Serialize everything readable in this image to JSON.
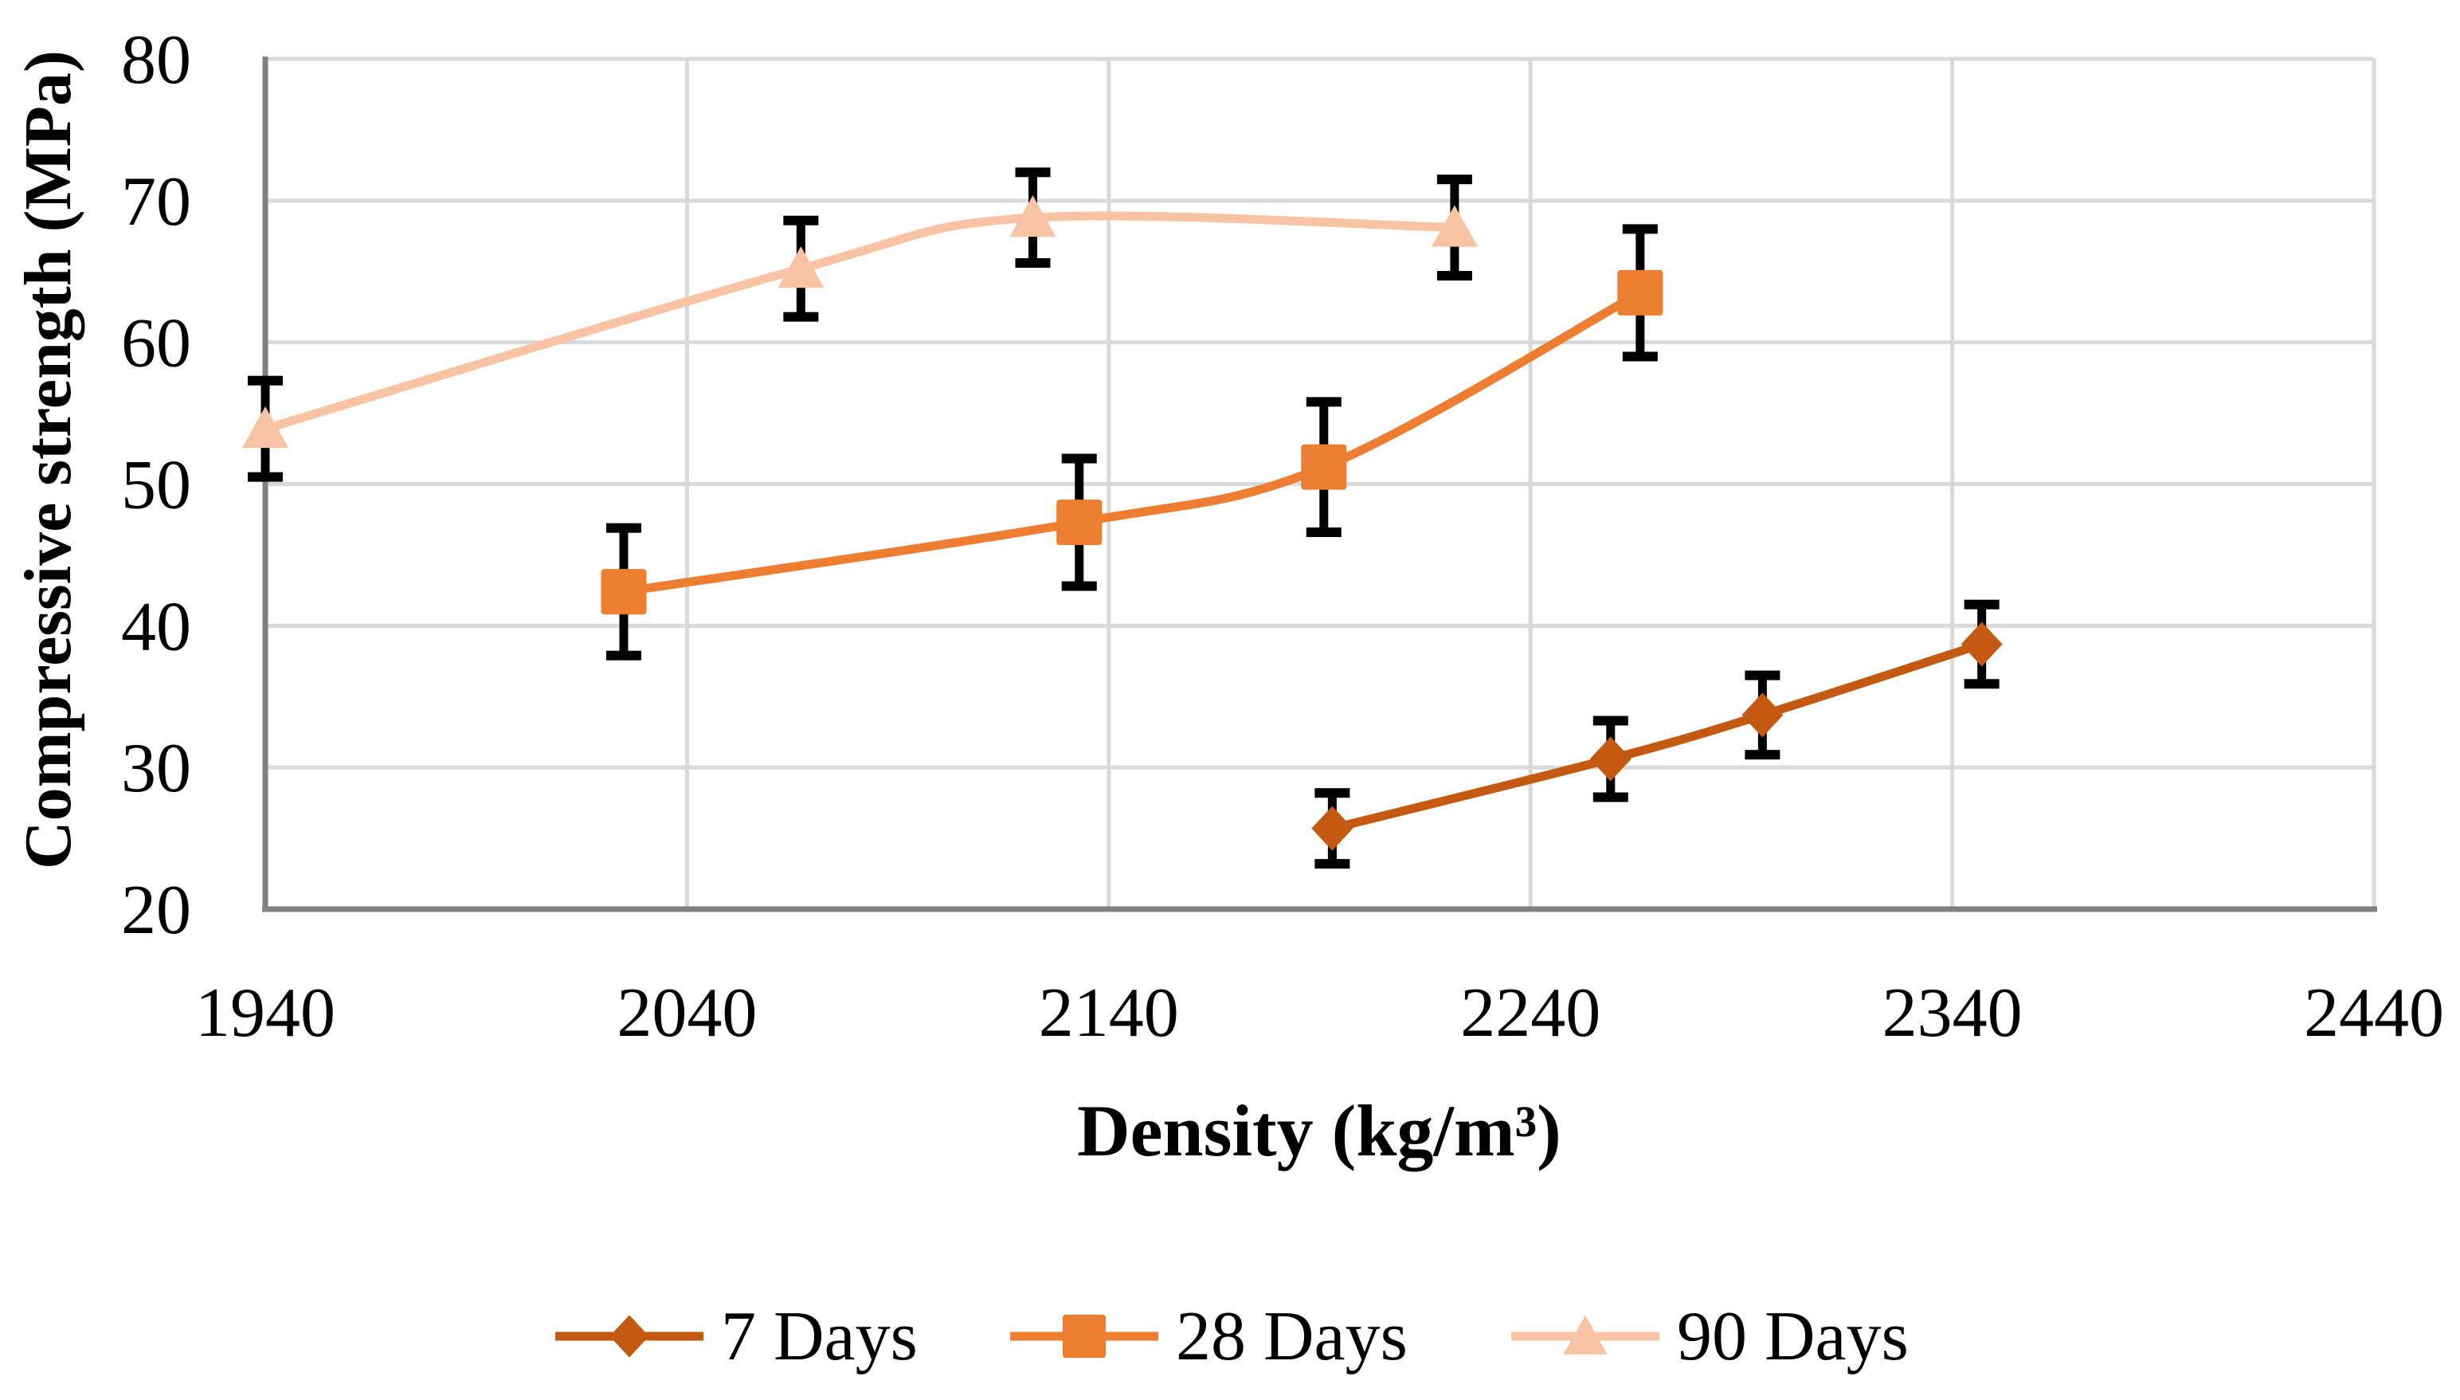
{
  "chart_data": {
    "type": "line",
    "title": "",
    "xlabel": "Density (kg/m³)",
    "ylabel": "Compressive strength (MPa)",
    "xlim": [
      1940,
      2440
    ],
    "ylim": [
      20,
      80
    ],
    "x_ticks": [
      1940,
      2040,
      2140,
      2240,
      2340,
      2440
    ],
    "y_ticks": [
      80,
      70,
      60,
      50,
      40,
      30,
      20
    ],
    "grid": true,
    "legend_position": "bottom",
    "marker_size": 56,
    "series": [
      {
        "name": "7 Days",
        "marker": "diamond",
        "color": "#C45911",
        "points": [
          {
            "x": 2193,
            "y": 25.7,
            "err": 2.5
          },
          {
            "x": 2259,
            "y": 30.6,
            "err": 2.7
          },
          {
            "x": 2295,
            "y": 33.7,
            "err": 2.8
          },
          {
            "x": 2347,
            "y": 38.7,
            "err": 2.8
          }
        ]
      },
      {
        "name": "28 Days",
        "marker": "square",
        "color": "#ED7D31",
        "points": [
          {
            "x": 2025,
            "y": 42.4,
            "err": 4.5
          },
          {
            "x": 2133,
            "y": 47.3,
            "err": 4.5
          },
          {
            "x": 2191,
            "y": 51.2,
            "err": 4.6
          },
          {
            "x": 2266,
            "y": 63.5,
            "err": 4.5
          }
        ]
      },
      {
        "name": "90 Days",
        "marker": "triangle",
        "color": "#F8C3A2",
        "points": [
          {
            "x": 1940,
            "y": 53.9,
            "err": 3.4
          },
          {
            "x": 2067,
            "y": 65.2,
            "err": 3.4
          },
          {
            "x": 2122,
            "y": 68.8,
            "err": 3.2
          },
          {
            "x": 2222,
            "y": 68.1,
            "err": 3.4
          }
        ]
      }
    ],
    "colors": {
      "gridline": "#D9D9D9",
      "axis_line": "#808080",
      "error_bar": "#000000",
      "background": "#FFFFFF",
      "text": "#000000"
    }
  }
}
